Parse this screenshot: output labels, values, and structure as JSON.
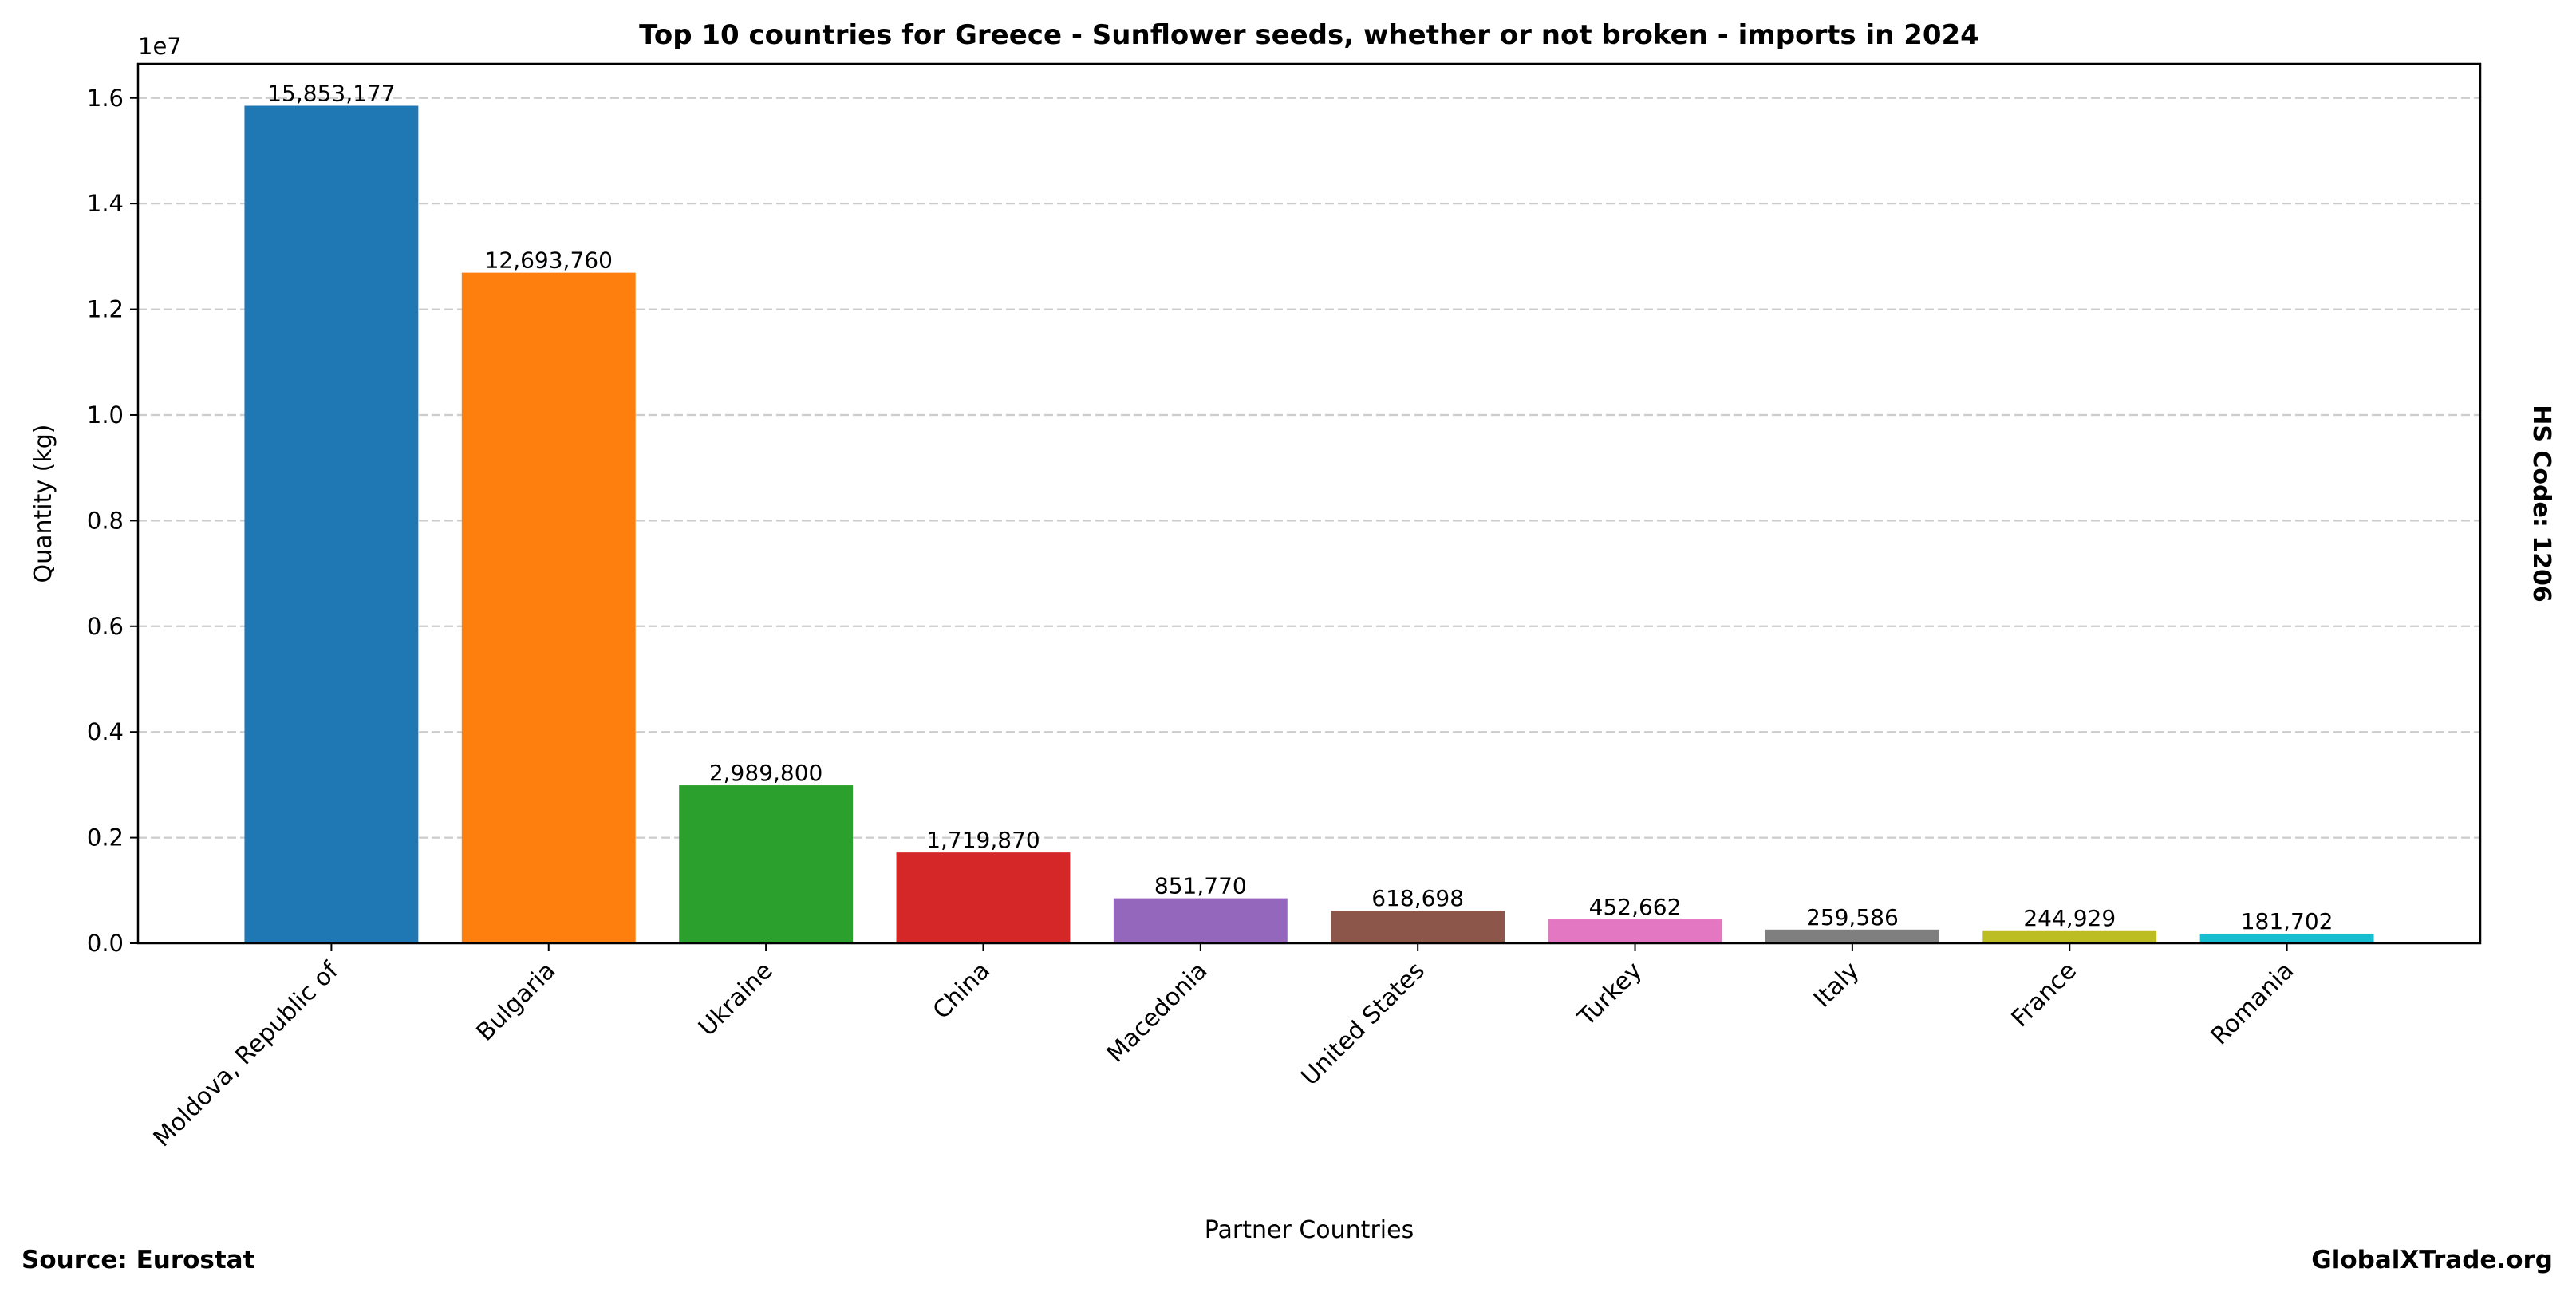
{
  "chart_data": {
    "type": "bar",
    "title": "Top 10 countries for Greece - Sunflower seeds, whether or not broken - imports in 2024",
    "xlabel": "Partner Countries",
    "ylabel": "Quantity (kg)",
    "y_offset_label": "1e7",
    "categories": [
      "Moldova, Republic of",
      "Bulgaria",
      "Ukraine",
      "China",
      "Macedonia",
      "United States",
      "Turkey",
      "Italy",
      "France",
      "Romania"
    ],
    "values": [
      15853177,
      12693760,
      2989800,
      1719870,
      851770,
      618698,
      452662,
      259586,
      244929,
      181702
    ],
    "value_labels": [
      "15,853,177",
      "12,693,760",
      "2,989,800",
      "1,719,870",
      "851,770",
      "618,698",
      "452,662",
      "259,586",
      "244,929",
      "181,702"
    ],
    "colors": [
      "#1f77b4",
      "#ff7f0e",
      "#2ca02c",
      "#d62728",
      "#9467bd",
      "#8c564b",
      "#e377c2",
      "#7f7f7f",
      "#bcbd22",
      "#17becf"
    ],
    "ylim": [
      0,
      16645836
    ],
    "yticks": [
      0,
      2000000,
      4000000,
      6000000,
      8000000,
      10000000,
      12000000,
      14000000,
      16000000
    ],
    "ytick_labels": [
      "0.0",
      "0.2",
      "0.4",
      "0.6",
      "0.8",
      "1.0",
      "1.2",
      "1.4",
      "1.6"
    ],
    "grid": "y-dashed",
    "legend": "none"
  },
  "annotations": {
    "source": "Source: Eurostat",
    "brand": "GlobalXTrade.org",
    "hs_code": "HS Code: 1206"
  }
}
